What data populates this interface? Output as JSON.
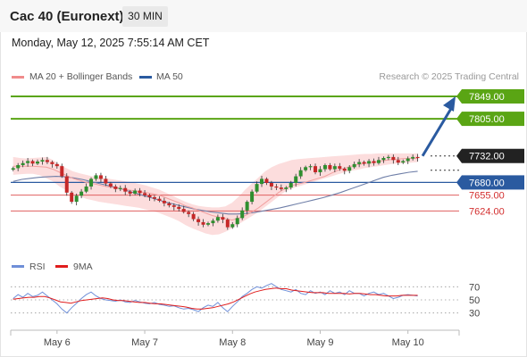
{
  "header": {
    "title": "Cac 40 (Euronext)",
    "timeframe": "30 MIN"
  },
  "datetime": "Monday, May 12, 2025 7:55:14 AM CET",
  "legend": {
    "ma20": {
      "label": "MA 20 + Bollinger Bands",
      "color": "#f08c8c"
    },
    "ma50": {
      "label": "MA 50",
      "color": "#2a5aa0"
    },
    "credit": "Research © 2025 Trading Central"
  },
  "rsi_legend": {
    "rsi": {
      "label": "RSI",
      "color": "#6f8fd8"
    },
    "ma9": {
      "label": "9MA",
      "color": "#e01d1d"
    }
  },
  "chart_data": {
    "type": "candlestick",
    "y_range": [
      7530,
      7870
    ],
    "candle_up_color": "#2f8f2f",
    "candle_down_color": "#c62828",
    "levels": [
      {
        "label": "7849.00",
        "value": 7849,
        "kind": "resistance",
        "color": "#5aa514"
      },
      {
        "label": "7805.00",
        "value": 7805,
        "kind": "resistance",
        "color": "#5aa514"
      },
      {
        "label": "7732.00",
        "value": 7732,
        "kind": "last",
        "color": "#222222"
      },
      {
        "label": "7680.00",
        "value": 7680,
        "kind": "pivot",
        "color": "#2a5aa0"
      },
      {
        "label": "7655.00",
        "value": 7655,
        "kind": "support",
        "color": "#e06060"
      },
      {
        "label": "7624.00",
        "value": 7624,
        "kind": "support",
        "color": "#e06060"
      }
    ],
    "x_axis": {
      "ticks": [
        {
          "label": "May 6",
          "index": 9
        },
        {
          "label": "May 7",
          "index": 27
        },
        {
          "label": "May 8",
          "index": 45
        },
        {
          "label": "May 9",
          "index": 63
        },
        {
          "label": "May 10",
          "index": 81
        }
      ],
      "n_slots": 92
    },
    "closes": [
      7708,
      7714,
      7718,
      7722,
      7717,
      7721,
      7724,
      7720,
      7716,
      7712,
      7692,
      7660,
      7642,
      7654,
      7662,
      7672,
      7687,
      7694,
      7687,
      7678,
      7672,
      7667,
      7669,
      7662,
      7658,
      7664,
      7659,
      7655,
      7651,
      7648,
      7644,
      7639,
      7635,
      7632,
      7628,
      7622,
      7618,
      7608,
      7602,
      7597,
      7600,
      7605,
      7612,
      7607,
      7592,
      7598,
      7610,
      7625,
      7642,
      7662,
      7677,
      7687,
      7679,
      7672,
      7670,
      7667,
      7670,
      7679,
      7692,
      7704,
      7710,
      7712,
      7700,
      7706,
      7714,
      7706,
      7712,
      7707,
      7703,
      7710,
      7716,
      7720,
      7717,
      7722,
      7718,
      7724,
      7728,
      7730,
      7724,
      7719,
      7722,
      7727,
      7730,
      7728
    ],
    "ma20": [
      7712,
      7712,
      7712,
      7712,
      7711,
      7710,
      7706,
      7700,
      7694,
      7688,
      7684,
      7680,
      7678,
      7675,
      7672,
      7670,
      7668,
      7666,
      7664,
      7662,
      7660,
      7658,
      7655,
      7650,
      7645,
      7640,
      7634,
      7630,
      7625,
      7620,
      7615,
      7612,
      7609,
      7606,
      7610,
      7615,
      7622,
      7630,
      7640,
      7650,
      7660,
      7668,
      7674,
      7677,
      7680,
      7684,
      7688,
      7692,
      7698,
      7704,
      7708,
      7712,
      7715,
      7717,
      7719,
      7721,
      7723,
      7725,
      7726,
      7727,
      7727,
      7727
    ],
    "bb_upper": [
      7730,
      7728,
      7727,
      7728,
      7729,
      7730,
      7724,
      7715,
      7708,
      7702,
      7698,
      7695,
      7692,
      7690,
      7688,
      7686,
      7684,
      7682,
      7680,
      7677,
      7674,
      7670,
      7666,
      7660,
      7654,
      7648,
      7642,
      7637,
      7634,
      7632,
      7631,
      7631,
      7633,
      7640,
      7652,
      7666,
      7678,
      7690,
      7702,
      7710,
      7716,
      7720,
      7724,
      7726,
      7727,
      7728,
      7729,
      7730,
      7731,
      7732,
      7733,
      7734,
      7735,
      7736,
      7736,
      7737,
      7737,
      7737,
      7737,
      7737,
      7737,
      7737
    ],
    "bb_lower": [
      7695,
      7696,
      7697,
      7697,
      7694,
      7688,
      7682,
      7672,
      7665,
      7658,
      7653,
      7648,
      7645,
      7642,
      7640,
      7638,
      7636,
      7634,
      7632,
      7630,
      7627,
      7624,
      7620,
      7615,
      7610,
      7604,
      7596,
      7590,
      7585,
      7580,
      7577,
      7578,
      7583,
      7590,
      7598,
      7606,
      7614,
      7622,
      7632,
      7642,
      7652,
      7662,
      7668,
      7672,
      7676,
      7680,
      7684,
      7688,
      7692,
      7696,
      7700,
      7703,
      7705,
      7708,
      7710,
      7712,
      7714,
      7716,
      7717,
      7718,
      7719,
      7720
    ],
    "ma50": [
      7682,
      7686,
      7688,
      7690,
      7691,
      7692,
      7691,
      7689,
      7686,
      7682,
      7678,
      7674,
      7670,
      7665,
      7660,
      7655,
      7650,
      7645,
      7640,
      7636,
      7632,
      7628,
      7625,
      7622,
      7620,
      7618,
      7618,
      7619,
      7621,
      7624,
      7627,
      7630,
      7634,
      7638,
      7642,
      7646,
      7650,
      7655,
      7660,
      7666,
      7672,
      7678,
      7684,
      7690,
      7694,
      7697,
      7700,
      7702
    ],
    "projection": {
      "from_index": 84,
      "from_value": 7732,
      "to_value": 7849
    },
    "rsi": {
      "y_range": [
        20,
        80
      ],
      "ticks": [
        {
          "label": "70",
          "value": 70
        },
        {
          "label": "50",
          "value": 50
        },
        {
          "label": "30",
          "value": 30
        }
      ],
      "values": [
        52,
        58,
        54,
        60,
        55,
        57,
        62,
        56,
        50,
        44,
        36,
        30,
        38,
        45,
        52,
        58,
        62,
        56,
        52,
        50,
        49,
        48,
        50,
        47,
        46,
        49,
        47,
        45,
        44,
        46,
        43,
        42,
        40,
        41,
        38,
        36,
        37,
        35,
        32,
        38,
        42,
        40,
        46,
        38,
        32,
        40,
        47,
        55,
        60,
        66,
        70,
        68,
        72,
        75,
        70,
        66,
        64,
        62,
        66,
        60,
        58,
        64,
        60,
        62,
        58,
        64,
        60,
        62,
        58,
        64,
        60,
        60,
        56,
        60,
        62,
        58,
        60,
        56,
        52,
        54,
        57,
        58,
        57,
        56
      ],
      "ma9": [
        51,
        52,
        53,
        54,
        54,
        55,
        55,
        53,
        50,
        47,
        46,
        45,
        47,
        49,
        50,
        51,
        52,
        53,
        52,
        50,
        49,
        49,
        48,
        47,
        46,
        46,
        45,
        44,
        44,
        43,
        42,
        41,
        40,
        39,
        37,
        36,
        36,
        37,
        38,
        40,
        42,
        44,
        47,
        51,
        55,
        59,
        62,
        64,
        66,
        67,
        68,
        67,
        67,
        65,
        64,
        63,
        62,
        61,
        61,
        61,
        60,
        60,
        60,
        60,
        59,
        60,
        60,
        59,
        58,
        58,
        57,
        56,
        56,
        56,
        57,
        57,
        57,
        57
      ]
    }
  },
  "axis_labels": [
    "May 6",
    "May 7",
    "May 8",
    "May 9",
    "May 10"
  ]
}
